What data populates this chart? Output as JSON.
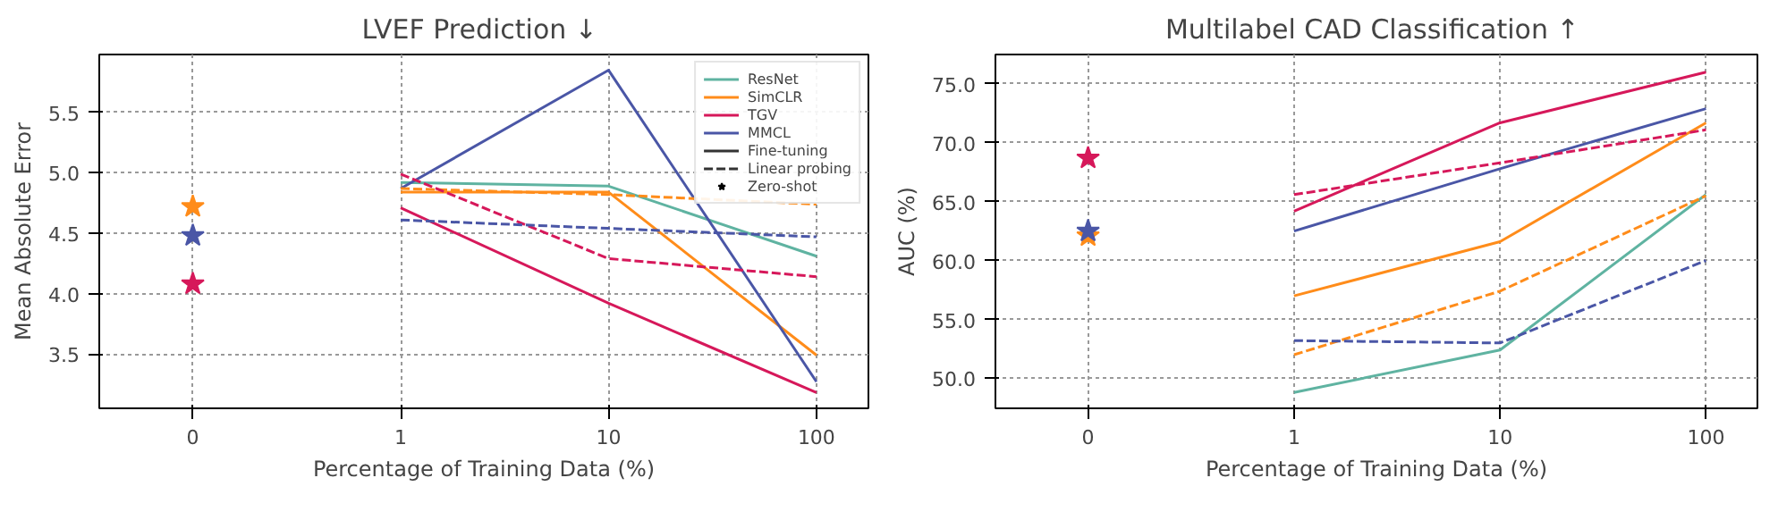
{
  "chart_data": [
    {
      "type": "line",
      "title": "LVEF Prediction  ↓",
      "xlabel": "Percentage of Training Data (%)",
      "ylabel": "Mean Absolute Error",
      "categories": [
        "0",
        "1",
        "10",
        "100"
      ],
      "ylim": [
        3.05,
        5.98
      ],
      "yticks": [
        3.5,
        {
          "value": 4,
          "label": "4.0"
        },
        4.5,
        {
          "value": 5,
          "label": "5.0"
        },
        5.5
      ],
      "grid": true,
      "legend": "top right",
      "series": [
        {
          "name": "ResNet",
          "color": "#5fb3a1",
          "line_style": "solid",
          "values": [
            null,
            4.92,
            4.89,
            4.31
          ]
        },
        {
          "name": "SimCLR",
          "color": "#ff8c1a",
          "line_style": "solid",
          "values": [
            null,
            4.84,
            4.84,
            3.49
          ]
        },
        {
          "name": "TGV",
          "color": "#d6185a",
          "line_style": "solid",
          "values": [
            null,
            4.71,
            3.92,
            3.18
          ]
        },
        {
          "name": "MMCL",
          "color": "#4a56a6",
          "line_style": "solid",
          "values": [
            null,
            4.87,
            5.85,
            3.27
          ]
        },
        {
          "color": "#ff8c1a",
          "line_style": "dashed",
          "values": [
            null,
            4.87,
            4.82,
            4.74
          ]
        },
        {
          "color": "#d6185a",
          "line_style": "dashed",
          "values": [
            null,
            4.99,
            4.29,
            4.14
          ]
        },
        {
          "color": "#4a56a6",
          "line_style": "dashed",
          "values": [
            null,
            4.61,
            4.54,
            4.47
          ]
        },
        {
          "type": "scatter",
          "marker": "star",
          "color": "#ff8c1a",
          "values": [
            4.72,
            null,
            null,
            null
          ]
        },
        {
          "type": "scatter",
          "marker": "star",
          "color": "#4a56a6",
          "values": [
            4.48,
            null,
            null,
            null
          ]
        },
        {
          "type": "scatter",
          "marker": "star",
          "color": "#d6185a",
          "values": [
            4.08,
            null,
            null,
            null
          ]
        },
        {
          "name": "Fine-tuning",
          "color": "#333333",
          "line_style": "solid",
          "values": [
            null,
            null,
            null,
            null
          ]
        },
        {
          "name": "Linear probing",
          "color": "#333333",
          "line_style": "dashed",
          "values": [
            null,
            null,
            null,
            null
          ]
        },
        {
          "name": "Zero-shot",
          "type": "scatter",
          "marker": "star",
          "color": "#000000",
          "values": [
            null,
            null,
            null,
            null
          ]
        }
      ]
    },
    {
      "type": "line",
      "title": "Multilabel CAD Classification  ↑",
      "xlabel": "Percentage of Training Data (%)",
      "ylabel": "AUC (%)",
      "categories": [
        "0",
        "1",
        "10",
        "100"
      ],
      "ylim": [
        47.45,
        77.5
      ],
      "yticks": [
        {
          "value": 50,
          "label": "50.0"
        },
        {
          "value": 55,
          "label": "55.0"
        },
        {
          "value": 60,
          "label": "60.0"
        },
        {
          "value": 65,
          "label": "65.0"
        },
        {
          "value": 70,
          "label": "70.0"
        },
        {
          "value": 75,
          "label": "75.0"
        }
      ],
      "grid": true,
      "series": [
        {
          "color": "#5fb3a1",
          "line_style": "solid",
          "values": [
            null,
            48.8,
            52.4,
            65.6
          ]
        },
        {
          "color": "#ff8c1a",
          "line_style": "solid",
          "values": [
            null,
            57.0,
            61.6,
            71.7
          ]
        },
        {
          "color": "#d6185a",
          "line_style": "solid",
          "values": [
            null,
            64.2,
            71.7,
            76.0
          ]
        },
        {
          "color": "#4a56a6",
          "line_style": "solid",
          "values": [
            null,
            62.5,
            67.8,
            72.9
          ]
        },
        {
          "color": "#ff8c1a",
          "line_style": "dashed",
          "values": [
            null,
            52.0,
            57.4,
            65.5
          ]
        },
        {
          "color": "#d6185a",
          "line_style": "dashed",
          "values": [
            null,
            65.6,
            68.3,
            71.1
          ]
        },
        {
          "color": "#4a56a6",
          "line_style": "dashed",
          "values": [
            null,
            53.2,
            53.0,
            60.0
          ]
        },
        {
          "type": "scatter",
          "marker": "star",
          "color": "#d6185a",
          "values": [
            68.7,
            null,
            null,
            null
          ]
        },
        {
          "type": "scatter",
          "marker": "star",
          "color": "#ff8c1a",
          "values": [
            62.1,
            null,
            null,
            null
          ]
        },
        {
          "type": "scatter",
          "marker": "star",
          "color": "#4a56a6",
          "values": [
            62.5,
            null,
            null,
            null
          ]
        }
      ]
    }
  ]
}
